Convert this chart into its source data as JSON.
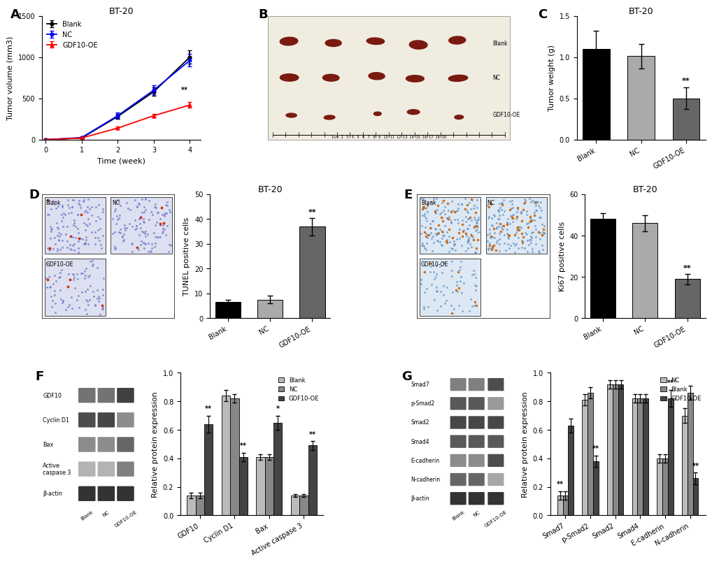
{
  "panel_A": {
    "title": "BT-20",
    "xlabel": "Time (week)",
    "ylabel": "Tumor volume (mm3)",
    "xlim": [
      -0.1,
      4.3
    ],
    "ylim": [
      0,
      1500
    ],
    "yticks": [
      0,
      500,
      1000,
      1500
    ],
    "xticks": [
      0,
      1,
      2,
      3,
      4
    ],
    "weeks": [
      0,
      1,
      2,
      3,
      4
    ],
    "blank_mean": [
      0,
      20,
      280,
      580,
      1000
    ],
    "blank_err": [
      0,
      5,
      30,
      50,
      80
    ],
    "nc_mean": [
      0,
      25,
      290,
      600,
      960
    ],
    "nc_err": [
      0,
      6,
      35,
      55,
      75
    ],
    "gdf10_mean": [
      0,
      20,
      140,
      290,
      420
    ],
    "gdf10_err": [
      0,
      4,
      15,
      25,
      35
    ],
    "blank_color": "#000000",
    "nc_color": "#0000ff",
    "gdf10_color": "#ff0000",
    "label_blank": "Blank",
    "label_nc": "NC",
    "label_gdf10": "GDF10-OE"
  },
  "panel_C": {
    "title": "BT-20",
    "ylabel": "Tumor weight (g)",
    "ylim": [
      0,
      1.5
    ],
    "yticks": [
      0.0,
      0.5,
      1.0,
      1.5
    ],
    "categories": [
      "Blank",
      "NC",
      "GDF10-OE"
    ],
    "values": [
      1.1,
      1.01,
      0.5
    ],
    "errors": [
      0.22,
      0.15,
      0.13
    ],
    "bar_colors": [
      "#000000",
      "#aaaaaa",
      "#666666"
    ]
  },
  "panel_D_bar": {
    "title": "BT-20",
    "ylabel": "TUNEL positive cells",
    "ylim": [
      0,
      50
    ],
    "yticks": [
      0,
      10,
      20,
      30,
      40,
      50
    ],
    "categories": [
      "Blank",
      "NC",
      "GDF10-OE"
    ],
    "values": [
      6.5,
      7.5,
      37
    ],
    "errors": [
      1.0,
      1.5,
      3.5
    ],
    "bar_colors": [
      "#000000",
      "#aaaaaa",
      "#666666"
    ]
  },
  "panel_E_bar": {
    "title": "BT-20",
    "ylabel": "Ki67 positive cells",
    "ylim": [
      0,
      60
    ],
    "yticks": [
      0,
      20,
      40,
      60
    ],
    "categories": [
      "Blank",
      "NC",
      "GDF10-OE"
    ],
    "values": [
      48,
      46,
      19
    ],
    "errors": [
      3.0,
      4.0,
      2.5
    ],
    "bar_colors": [
      "#000000",
      "#aaaaaa",
      "#666666"
    ]
  },
  "panel_F_bar": {
    "ylabel": "Relative protein expression",
    "ylim": [
      0,
      1.0
    ],
    "yticks": [
      0.0,
      0.2,
      0.4,
      0.6,
      0.8,
      1.0
    ],
    "groups": [
      "GDF10",
      "Cyclin D1",
      "Bax",
      "Active caspase 3"
    ],
    "blank_values": [
      0.14,
      0.84,
      0.41,
      0.14
    ],
    "nc_values": [
      0.14,
      0.82,
      0.41,
      0.14
    ],
    "gdf10_values": [
      0.64,
      0.41,
      0.65,
      0.49
    ],
    "blank_errors": [
      0.02,
      0.04,
      0.02,
      0.01
    ],
    "nc_errors": [
      0.02,
      0.03,
      0.02,
      0.01
    ],
    "gdf10_errors": [
      0.06,
      0.03,
      0.05,
      0.03
    ],
    "blank_color": "#bbbbbb",
    "nc_color": "#888888",
    "gdf10_color": "#444444",
    "sig_labels_blank": [
      "",
      "",
      "",
      ""
    ],
    "sig_labels_nc": [
      "",
      "",
      "",
      ""
    ],
    "sig_labels_gdf10": [
      "**",
      "**",
      "*",
      "**"
    ],
    "label_blank": "Blank",
    "label_nc": "NC",
    "label_gdf10": "GDF10-OE"
  },
  "panel_G_bar": {
    "ylabel": "Relative protein expression",
    "ylim": [
      0,
      1.0
    ],
    "yticks": [
      0.0,
      0.2,
      0.4,
      0.6,
      0.8,
      1.0
    ],
    "groups": [
      "Smad7",
      "p-Smad2",
      "Smad2",
      "Smad4",
      "E-cadherin",
      "N-cadherin"
    ],
    "nc_values": [
      0.14,
      0.81,
      0.92,
      0.82,
      0.4,
      0.7
    ],
    "blank_values": [
      0.14,
      0.86,
      0.92,
      0.82,
      0.4,
      0.86
    ],
    "gdf10_values": [
      0.63,
      0.38,
      0.92,
      0.82,
      0.82,
      0.26
    ],
    "nc_errors": [
      0.03,
      0.04,
      0.03,
      0.03,
      0.03,
      0.05
    ],
    "blank_errors": [
      0.03,
      0.04,
      0.03,
      0.03,
      0.03,
      0.05
    ],
    "gdf10_errors": [
      0.05,
      0.04,
      0.03,
      0.03,
      0.06,
      0.04
    ],
    "nc_color": "#bbbbbb",
    "blank_color": "#888888",
    "gdf10_color": "#444444",
    "sig_labels_nc": [
      "**",
      "",
      "",
      "",
      "",
      ""
    ],
    "sig_labels_blank": [
      "",
      "",
      "",
      "",
      "",
      ""
    ],
    "sig_labels_gdf10": [
      "",
      "**",
      "",
      "",
      "**",
      "**"
    ],
    "label_nc": "NC",
    "label_blank": "Blank",
    "label_gdf10": "GDF10-OE"
  },
  "panel_label_fontsize": 13,
  "axis_fontsize": 8,
  "tick_fontsize": 7,
  "title_fontsize": 9,
  "legend_fontsize": 7,
  "bar_width": 0.25
}
